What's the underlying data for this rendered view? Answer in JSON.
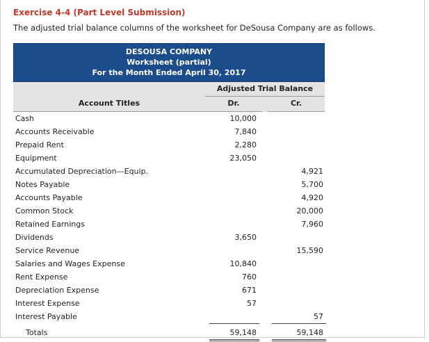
{
  "exercise": {
    "title": "Exercise 4-4 (Part Level Submission)",
    "description": "The adjusted trial balance columns of the worksheet for DeSousa Company are as follows."
  },
  "worksheet": {
    "company": "DESOUSA COMPANY",
    "subtitle": "Worksheet (partial)",
    "period": "For the Month Ended April 30, 2017",
    "section_header": "Adjusted Trial Balance",
    "col_account": "Account Titles",
    "col_dr": "Dr.",
    "col_cr": "Cr.",
    "rows": [
      {
        "title": "Cash",
        "dr": "10,000",
        "cr": ""
      },
      {
        "title": "Accounts Receivable",
        "dr": "7,840",
        "cr": ""
      },
      {
        "title": "Prepaid Rent",
        "dr": "2,280",
        "cr": ""
      },
      {
        "title": "Equipment",
        "dr": "23,050",
        "cr": ""
      },
      {
        "title": "Accumulated Depreciation—Equip.",
        "dr": "",
        "cr": "4,921"
      },
      {
        "title": "Notes Payable",
        "dr": "",
        "cr": "5,700"
      },
      {
        "title": "Accounts Payable",
        "dr": "",
        "cr": "4,920"
      },
      {
        "title": "Common Stock",
        "dr": "",
        "cr": "20,000"
      },
      {
        "title": "Retained Earnings",
        "dr": "",
        "cr": "7,960"
      },
      {
        "title": "Dividends",
        "dr": "3,650",
        "cr": ""
      },
      {
        "title": "Service Revenue",
        "dr": "",
        "cr": "15,590"
      },
      {
        "title": "Salaries and Wages Expense",
        "dr": "10,840",
        "cr": ""
      },
      {
        "title": "Rent Expense",
        "dr": "760",
        "cr": ""
      },
      {
        "title": "Depreciation Expense",
        "dr": "671",
        "cr": ""
      },
      {
        "title": "Interest Expense",
        "dr": "57",
        "cr": ""
      },
      {
        "title": "Interest Payable",
        "dr": "",
        "cr": "57"
      }
    ],
    "totals": {
      "title": "Totals",
      "dr": "59,148",
      "cr": "59,148"
    },
    "colors": {
      "header_bg": "#1b4c8c",
      "title_red": "#c0392b",
      "subheader_bg": "#e3e3e3"
    }
  }
}
